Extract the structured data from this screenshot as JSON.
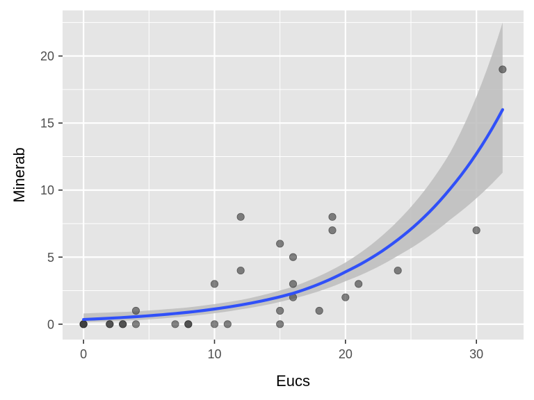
{
  "chart_data": {
    "type": "scatter",
    "xlabel": "Eucs",
    "ylabel": "Minerab",
    "xlim": [
      -1.6,
      33.6
    ],
    "ylim": [
      -1.15,
      23.4
    ],
    "x_ticks": [
      0,
      10,
      20,
      30
    ],
    "x_tick_labels": [
      "0",
      "10",
      "20",
      "30"
    ],
    "x_minor_ticks": [
      5,
      15,
      25
    ],
    "y_ticks": [
      0,
      5,
      10,
      15,
      20
    ],
    "y_tick_labels": [
      "0",
      "5",
      "10",
      "15",
      "20"
    ],
    "y_minor_ticks": [
      2.5,
      7.5,
      12.5,
      17.5,
      22.5
    ],
    "grid": true,
    "legend": "none",
    "points": [
      {
        "x": 0,
        "y": 0
      },
      {
        "x": 0,
        "y": 0
      },
      {
        "x": 0,
        "y": 0
      },
      {
        "x": 2,
        "y": 0
      },
      {
        "x": 2,
        "y": 0
      },
      {
        "x": 3,
        "y": 0
      },
      {
        "x": 3,
        "y": 0
      },
      {
        "x": 4,
        "y": 1
      },
      {
        "x": 4,
        "y": 0
      },
      {
        "x": 7,
        "y": 0
      },
      {
        "x": 8,
        "y": 0
      },
      {
        "x": 8,
        "y": 0
      },
      {
        "x": 10,
        "y": 3
      },
      {
        "x": 10,
        "y": 0
      },
      {
        "x": 11,
        "y": 0
      },
      {
        "x": 12,
        "y": 8
      },
      {
        "x": 12,
        "y": 4
      },
      {
        "x": 15,
        "y": 6
      },
      {
        "x": 15,
        "y": 1
      },
      {
        "x": 15,
        "y": 0
      },
      {
        "x": 16,
        "y": 5
      },
      {
        "x": 16,
        "y": 3
      },
      {
        "x": 16,
        "y": 2
      },
      {
        "x": 18,
        "y": 1
      },
      {
        "x": 19,
        "y": 8
      },
      {
        "x": 19,
        "y": 7
      },
      {
        "x": 20,
        "y": 2
      },
      {
        "x": 21,
        "y": 3
      },
      {
        "x": 24,
        "y": 4
      },
      {
        "x": 30,
        "y": 7
      },
      {
        "x": 32,
        "y": 19
      }
    ],
    "fit_curve": {
      "x": [
        0,
        4,
        8,
        12,
        16,
        20,
        24,
        28,
        32
      ],
      "y": [
        0.35,
        0.56,
        0.89,
        1.43,
        2.3,
        3.9,
        6.3,
        10.1,
        16.0
      ]
    },
    "confidence_band": {
      "x": [
        0,
        4,
        8,
        12,
        16,
        20,
        24,
        28,
        32
      ],
      "lower": [
        0.15,
        0.3,
        0.6,
        1.1,
        1.9,
        3.2,
        5.1,
        7.8,
        11.3
      ],
      "upper": [
        0.8,
        0.95,
        1.25,
        1.8,
        2.8,
        4.6,
        7.7,
        12.8,
        22.5
      ]
    },
    "colors": {
      "panel_background": "#e5e5e5",
      "grid": "#ffffff",
      "point_fill": "#333333",
      "fit_line": "#3050f8",
      "band": "#bdbdbd"
    }
  }
}
